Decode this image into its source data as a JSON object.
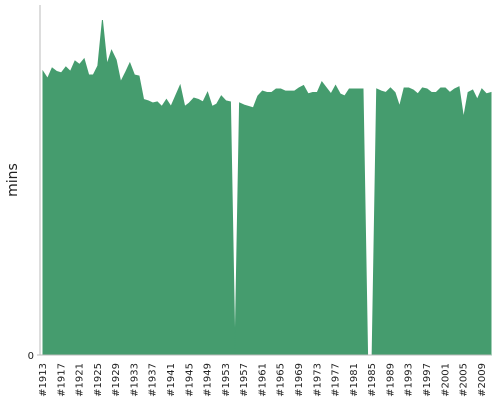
{
  "chart_data": {
    "type": "area",
    "y_label": "mins",
    "categories": [
      "#1913",
      null,
      null,
      null,
      "#1917",
      null,
      null,
      null,
      "#1921",
      null,
      null,
      null,
      "#1925",
      null,
      null,
      null,
      "#1929",
      null,
      null,
      null,
      "#1933",
      null,
      null,
      null,
      "#1937",
      null,
      null,
      null,
      "#1941",
      null,
      null,
      null,
      "#1945",
      null,
      null,
      null,
      "#1949",
      null,
      null,
      null,
      "#1953",
      null,
      null,
      null,
      "#1957",
      null,
      null,
      null,
      "#1961",
      null,
      null,
      null,
      "#1965",
      null,
      null,
      null,
      "#1969",
      null,
      null,
      null,
      "#1973",
      null,
      null,
      null,
      "#1977",
      null,
      null,
      null,
      "#1981",
      null,
      null,
      null,
      "#1985",
      null,
      null,
      null,
      "#1989",
      null,
      null,
      null,
      "#1993",
      null,
      null,
      null,
      "#1997",
      null,
      null,
      null,
      "#2001",
      null,
      null,
      null,
      "#2005",
      null,
      null,
      null,
      "#2009",
      null,
      null
    ],
    "values": [
      81,
      79,
      82,
      81,
      80.6,
      82.3,
      81,
      84,
      83,
      84.6,
      80,
      80,
      82.6,
      95.7,
      83,
      87,
      84.3,
      78,
      80.6,
      83.4,
      80,
      79.7,
      73,
      72.6,
      72,
      72.3,
      71,
      73,
      71,
      74,
      77,
      71,
      72,
      73.4,
      73,
      72.3,
      75,
      71,
      71.7,
      74,
      72.6,
      72.3,
      0,
      72,
      71.4,
      71,
      70.6,
      74,
      75.4,
      75,
      75,
      76,
      76,
      75.4,
      75.4,
      75.4,
      76.3,
      77,
      74.6,
      75,
      75,
      78,
      76.3,
      74.6,
      77,
      74.6,
      74,
      76,
      76,
      76,
      76,
      0,
      0,
      76,
      75.4,
      75,
      76.3,
      75,
      71,
      76.3,
      76.3,
      75.7,
      74.6,
      76.3,
      76,
      75,
      75,
      76.3,
      76.3,
      75,
      76,
      76.6,
      67.7,
      75,
      75.7,
      73,
      76,
      74.6,
      75
    ],
    "color": "#459c6e",
    "ylim": [
      0,
      100
    ],
    "yticks": [
      0
    ]
  }
}
